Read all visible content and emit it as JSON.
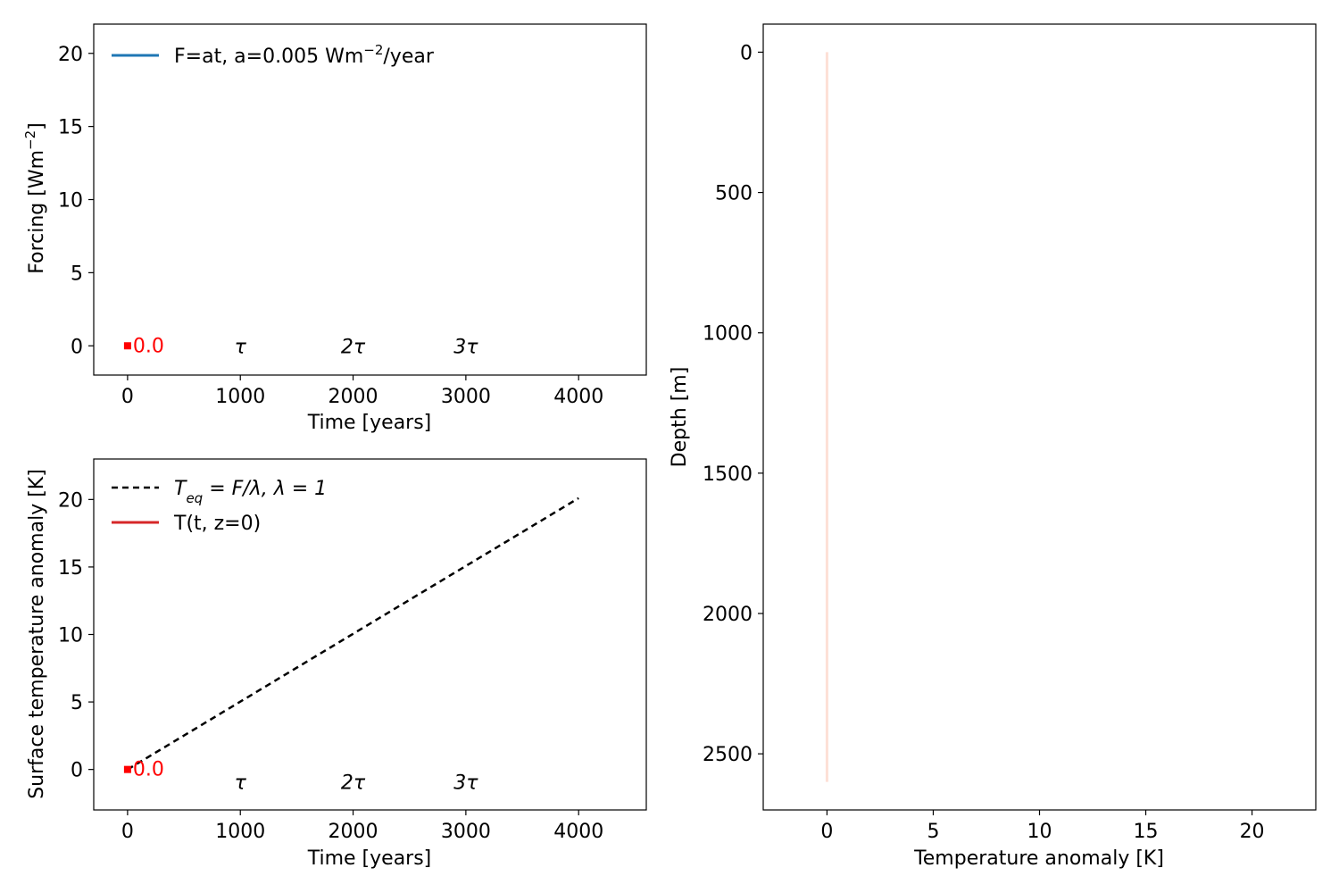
{
  "chart_data": [
    {
      "type": "line",
      "xlabel": "Time [years]",
      "ylabel": "Forcing [Wm⁻²]",
      "xlim": [
        -300,
        4600
      ],
      "ylim": [
        -2,
        22
      ],
      "xticks": [
        0,
        1000,
        2000,
        3000,
        4000
      ],
      "yticks": [
        0,
        5,
        10,
        15,
        20
      ],
      "series": [
        {
          "name": "F=at, a=0.005 Wm⁻²/year",
          "color": "#1f77b4",
          "style": "solid",
          "x": [
            0
          ],
          "y": [
            0
          ]
        }
      ],
      "marker": {
        "x": 0,
        "y": 0,
        "color": "#ff0000",
        "label": "0.0"
      },
      "annotations": [
        {
          "text": "τ",
          "x": 1000,
          "y": 0
        },
        {
          "text": "2τ",
          "x": 2000,
          "y": 0
        },
        {
          "text": "3τ",
          "x": 3000,
          "y": 0
        }
      ],
      "legend": "upper-left",
      "grid": false
    },
    {
      "type": "line",
      "xlabel": "Time [years]",
      "ylabel": "Surface temperature anomaly [K]",
      "xlim": [
        -300,
        4600
      ],
      "ylim": [
        -3,
        23
      ],
      "xticks": [
        0,
        1000,
        2000,
        3000,
        4000
      ],
      "yticks": [
        0,
        5,
        10,
        15,
        20
      ],
      "series": [
        {
          "name": "T_eq = F/λ, λ = 1",
          "color": "#000000",
          "style": "dashed",
          "x": [
            0,
            4000
          ],
          "y": [
            0,
            20.1
          ]
        },
        {
          "name": "T(t, z=0)",
          "color": "#d62728",
          "style": "solid",
          "x": [
            0
          ],
          "y": [
            0
          ]
        }
      ],
      "marker": {
        "x": 0,
        "y": 0,
        "color": "#ff0000",
        "label": "0.0"
      },
      "annotations": [
        {
          "text": "τ",
          "x": 1000,
          "y": -0.9
        },
        {
          "text": "2τ",
          "x": 2000,
          "y": -0.9
        },
        {
          "text": "3τ",
          "x": 3000,
          "y": -0.9
        }
      ],
      "legend": "upper-left",
      "grid": false
    },
    {
      "type": "line",
      "xlabel": "Temperature anomaly [K]",
      "ylabel": "Depth [m]",
      "xlim": [
        -3,
        23
      ],
      "ylim": [
        2700,
        -100
      ],
      "y_inverted": true,
      "xticks": [
        0,
        5,
        10,
        15,
        20
      ],
      "yticks": [
        0,
        500,
        1000,
        1500,
        2000,
        2500
      ],
      "series": [
        {
          "color": "#fde0d6",
          "style": "solid",
          "x": [
            0,
            0
          ],
          "y": [
            0,
            2600
          ]
        }
      ],
      "grid": false
    }
  ],
  "legend_math": {
    "forcing_prefix": "F=at, a=0.005 Wm",
    "forcing_sup": "−2",
    "forcing_suffix": "/year",
    "teq_T": "T",
    "teq_sub": "eq",
    "teq_rest": " = F/λ, λ = 1",
    "tsurf": "T(t, z=0)"
  },
  "ylabel_math": {
    "prefix": "Forcing [Wm",
    "sup": "−2",
    "suffix": "]"
  }
}
